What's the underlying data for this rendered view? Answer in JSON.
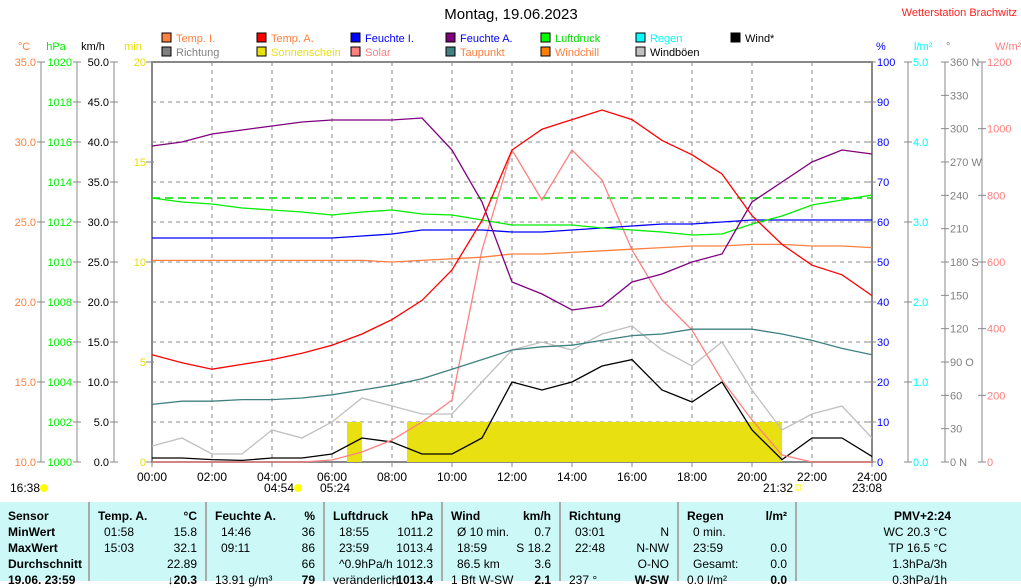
{
  "header": {
    "title": "Montag, 19.06.2023",
    "station": "Wetterstation Brachwitz"
  },
  "legend": [
    {
      "label": "Temp. I.",
      "color": "#ff8040",
      "text_color": "#ff8040"
    },
    {
      "label": "Temp. A.",
      "color": "#ff0000",
      "text_color": "#ff8040"
    },
    {
      "label": "Feuchte I.",
      "color": "#0000ff",
      "text_color": "#0000ff"
    },
    {
      "label": "Feuchte A.",
      "color": "#800080",
      "text_color": "#0000ff"
    },
    {
      "label": "Luftdruck",
      "color": "#00ff00",
      "text_color": "#00dd00"
    },
    {
      "label": "Regen",
      "color": "#00ffff",
      "text_color": "#00ffff"
    },
    {
      "label": "Wind*",
      "color": "#000000",
      "text_color": "#000000"
    },
    {
      "label": "Richtung",
      "color": "#808080",
      "text_color": "#808080"
    },
    {
      "label": "Sonnenschein",
      "color": "#e8e010",
      "text_color": "#e8e010"
    },
    {
      "label": "Solar",
      "color": "#ff8080",
      "text_color": "#ff8080"
    },
    {
      "label": "Taupunkt",
      "color": "#408080",
      "text_color": "#ff8040"
    },
    {
      "label": "Windchill",
      "color": "#ff8000",
      "text_color": "#ff8040"
    },
    {
      "label": "Windböen",
      "color": "#c0c0c0",
      "text_color": "#000000"
    }
  ],
  "chart_data": {
    "type": "line",
    "title": "Montag, 19.06.2023",
    "x_ticks": [
      "00:00",
      "02:00",
      "04:00",
      "06:00",
      "08:00",
      "10:00",
      "12:00",
      "14:00",
      "16:00",
      "18:00",
      "20:00",
      "22:00",
      "24:00"
    ],
    "x_hours": [
      0,
      1,
      2,
      3,
      4,
      5,
      6,
      7,
      8,
      9,
      10,
      11,
      12,
      13,
      14,
      15,
      16,
      17,
      18,
      19,
      20,
      21,
      22,
      23,
      24
    ],
    "axes": [
      {
        "unit": "°C",
        "color": "#ff8040",
        "ticks": [
          "35.0",
          "30.0",
          "25.0",
          "20.0",
          "15.0",
          "10.0"
        ],
        "range": [
          10,
          35
        ]
      },
      {
        "unit": "hPa",
        "color": "#00ee00",
        "ticks": [
          "1020",
          "1018",
          "1016",
          "1014",
          "1012",
          "1010",
          "1008",
          "1006",
          "1004",
          "1002",
          "1000"
        ],
        "range": [
          1000,
          1020
        ]
      },
      {
        "unit": "km/h",
        "color": "#000000",
        "ticks": [
          "50.0",
          "45.0",
          "40.0",
          "35.0",
          "30.0",
          "25.0",
          "20.0",
          "15.0",
          "10.0",
          "5.0",
          "0.0"
        ],
        "range": [
          0,
          50
        ]
      },
      {
        "unit": "min",
        "color": "#e8e000",
        "ticks": [
          "20",
          "15",
          "10",
          "5",
          "0"
        ],
        "range": [
          0,
          20
        ]
      },
      {
        "unit": "%",
        "color": "#0000ff",
        "ticks": [
          "100",
          "90",
          "80",
          "70",
          "60",
          "50",
          "40",
          "30",
          "20",
          "10",
          "0"
        ],
        "range": [
          0,
          100
        ]
      },
      {
        "unit": "l/m²",
        "color": "#00ffff",
        "ticks": [
          "5.0",
          "4.0",
          "3.0",
          "2.0",
          "1.0",
          "0.0"
        ],
        "range": [
          0,
          5
        ]
      },
      {
        "unit": "°",
        "color": "#808080",
        "ticks": [
          "360 N",
          "330",
          "300",
          "270 W",
          "240",
          "210",
          "180 S",
          "150",
          "120",
          "90  O",
          "60",
          "30",
          "0    N"
        ],
        "range": [
          0,
          360
        ]
      },
      {
        "unit": "W/m²",
        "color": "#ff8080",
        "ticks": [
          "1200",
          "1000",
          "800",
          "600",
          "400",
          "200",
          "0"
        ],
        "range": [
          0,
          1200
        ]
      }
    ],
    "series": [
      {
        "name": "Temp. A.",
        "axis": 0,
        "color": "#ff0000",
        "values": [
          16.7,
          16.2,
          15.8,
          16.1,
          16.4,
          16.8,
          17.3,
          18.0,
          18.9,
          20.1,
          22.0,
          25.1,
          29.5,
          30.8,
          31.4,
          32.0,
          31.4,
          30.1,
          29.2,
          28.0,
          25.4,
          23.6,
          22.3,
          21.7,
          20.4
        ]
      },
      {
        "name": "Temp. I.",
        "axis": 0,
        "color": "#ff8040",
        "values": [
          22.6,
          22.6,
          22.6,
          22.6,
          22.6,
          22.6,
          22.6,
          22.6,
          22.5,
          22.6,
          22.7,
          22.8,
          23.0,
          23.0,
          23.1,
          23.2,
          23.3,
          23.4,
          23.5,
          23.5,
          23.6,
          23.6,
          23.5,
          23.5,
          23.4
        ]
      },
      {
        "name": "Taupunkt",
        "axis": 0,
        "color": "#408080",
        "values": [
          13.6,
          13.8,
          13.8,
          13.9,
          13.9,
          14.0,
          14.2,
          14.5,
          14.8,
          15.2,
          15.8,
          16.4,
          17.0,
          17.2,
          17.3,
          17.6,
          17.9,
          18.0,
          18.3,
          18.3,
          18.3,
          18.0,
          17.6,
          17.1,
          16.7
        ]
      },
      {
        "name": "Feuchte A.",
        "axis": 4,
        "color": "#800080",
        "values": [
          79,
          80,
          82,
          83,
          84,
          85,
          85.5,
          85.5,
          85.5,
          86,
          78,
          65,
          45,
          42,
          38,
          39,
          45,
          47,
          50,
          52,
          65,
          70,
          75,
          78,
          77
        ]
      },
      {
        "name": "Feuchte I.",
        "axis": 4,
        "color": "#0000ff",
        "values": [
          56,
          56,
          56,
          56,
          56,
          56,
          56,
          56.5,
          57,
          58,
          58,
          58,
          57.5,
          57.5,
          58,
          58.5,
          59,
          59.5,
          59.5,
          60,
          60.5,
          60.5,
          60.5,
          60.5,
          60.5
        ]
      },
      {
        "name": "Luftdruck",
        "axis": 1,
        "color": "#00ee00",
        "values": [
          1013.2,
          1013.0,
          1012.9,
          1012.7,
          1012.6,
          1012.5,
          1012.35,
          1012.5,
          1012.6,
          1012.4,
          1012.35,
          1012.1,
          1011.85,
          1011.85,
          1011.85,
          1011.7,
          1011.6,
          1011.5,
          1011.35,
          1011.4,
          1011.9,
          1012.3,
          1012.85,
          1013.1,
          1013.35
        ]
      },
      {
        "name": "Solar",
        "axis": 7,
        "color": "#ff8080",
        "values": [
          0,
          0,
          0,
          0,
          0,
          0,
          6,
          30,
          66,
          120,
          186,
          636,
          936,
          786,
          936,
          846,
          636,
          486,
          396,
          246,
          126,
          21,
          0,
          0,
          0
        ]
      },
      {
        "name": "Wind*",
        "axis": 2,
        "color": "#000000",
        "values": [
          0.5,
          0.5,
          0.3,
          0.2,
          0.5,
          0.5,
          1.0,
          3.0,
          2.5,
          1.0,
          1.0,
          3.0,
          10.0,
          9.0,
          10.0,
          12.0,
          12.8,
          9.0,
          7.5,
          10.0,
          4.0,
          0.3,
          3.0,
          3.0,
          0.7
        ]
      },
      {
        "name": "Windböen",
        "axis": 2,
        "color": "#c0c0c0",
        "values": [
          2,
          3,
          1,
          1,
          4,
          3,
          5,
          8,
          7,
          6,
          6,
          10,
          14,
          15,
          14,
          16,
          17,
          14,
          12,
          15,
          9,
          4,
          6,
          7,
          3
        ]
      }
    ],
    "sunshine_intervals": [
      [
        6.5,
        7.0
      ],
      [
        8.5,
        21.0
      ]
    ],
    "sunshine_level_min": 2,
    "pressure_reference": 1013.2
  },
  "sun": {
    "left": "16:38",
    "rise": "04:54",
    "rise2": "05:24",
    "set": "21:32",
    "set2": "23:08"
  },
  "table": {
    "cols": [
      {
        "h1": "Sensor",
        "h2": "",
        "rows": [
          [
            "MinWert",
            ""
          ],
          [
            "MaxWert",
            ""
          ],
          [
            "Durchschnitt",
            ""
          ],
          [
            "19.06. 23:59",
            ""
          ]
        ],
        "bold_left": true
      },
      {
        "h1": "Temp. A.",
        "h2": "°C",
        "rows": [
          [
            "01:58",
            "15.8"
          ],
          [
            "15:03",
            "32.1"
          ],
          [
            "",
            "22.89"
          ],
          [
            "",
            "↓20.3"
          ]
        ]
      },
      {
        "h1": "Feuchte A.",
        "h2": "%",
        "rows": [
          [
            "14:46",
            "36"
          ],
          [
            "09:11",
            "86"
          ],
          [
            "",
            "66"
          ],
          [
            "13.91 g/m³",
            "79"
          ]
        ]
      },
      {
        "h1": "Luftdruck",
        "h2": "hPa",
        "rows": [
          [
            "18:55",
            "1011.2"
          ],
          [
            "23:59",
            "1013.4"
          ],
          [
            "^0.9hPa/h",
            "1012.3"
          ],
          [
            "veränderlich",
            "↑1013.4"
          ]
        ]
      },
      {
        "h1": "Wind",
        "h2": "km/h",
        "rows": [
          [
            "Ø 10 min.",
            "0.7"
          ],
          [
            "18:59",
            "S 18.2"
          ],
          [
            "86.5 km",
            "3.6"
          ],
          [
            "1 Bft W-SW",
            "2.1"
          ]
        ]
      },
      {
        "h1": "Richtung",
        "h2": "",
        "rows": [
          [
            "03:01",
            "N"
          ],
          [
            "22:48",
            "N-NW"
          ],
          [
            "",
            "O-NO"
          ],
          [
            "237 °",
            "W-SW"
          ]
        ]
      },
      {
        "h1": "Regen",
        "h2": "l/m²",
        "rows": [
          [
            "0 min.",
            ""
          ],
          [
            "23:59",
            "0.0"
          ],
          [
            "Gesamt:",
            "0.0"
          ],
          [
            "0.0 l/m²",
            "0.0"
          ]
        ]
      },
      {
        "h1": "PMV+2:24",
        "rows": [
          [
            "WC 20.3 °C"
          ],
          [
            "TP 16.5 °C"
          ],
          [
            "1.3hPa/3h"
          ],
          [
            "0.3hPa/1h"
          ]
        ]
      }
    ]
  }
}
